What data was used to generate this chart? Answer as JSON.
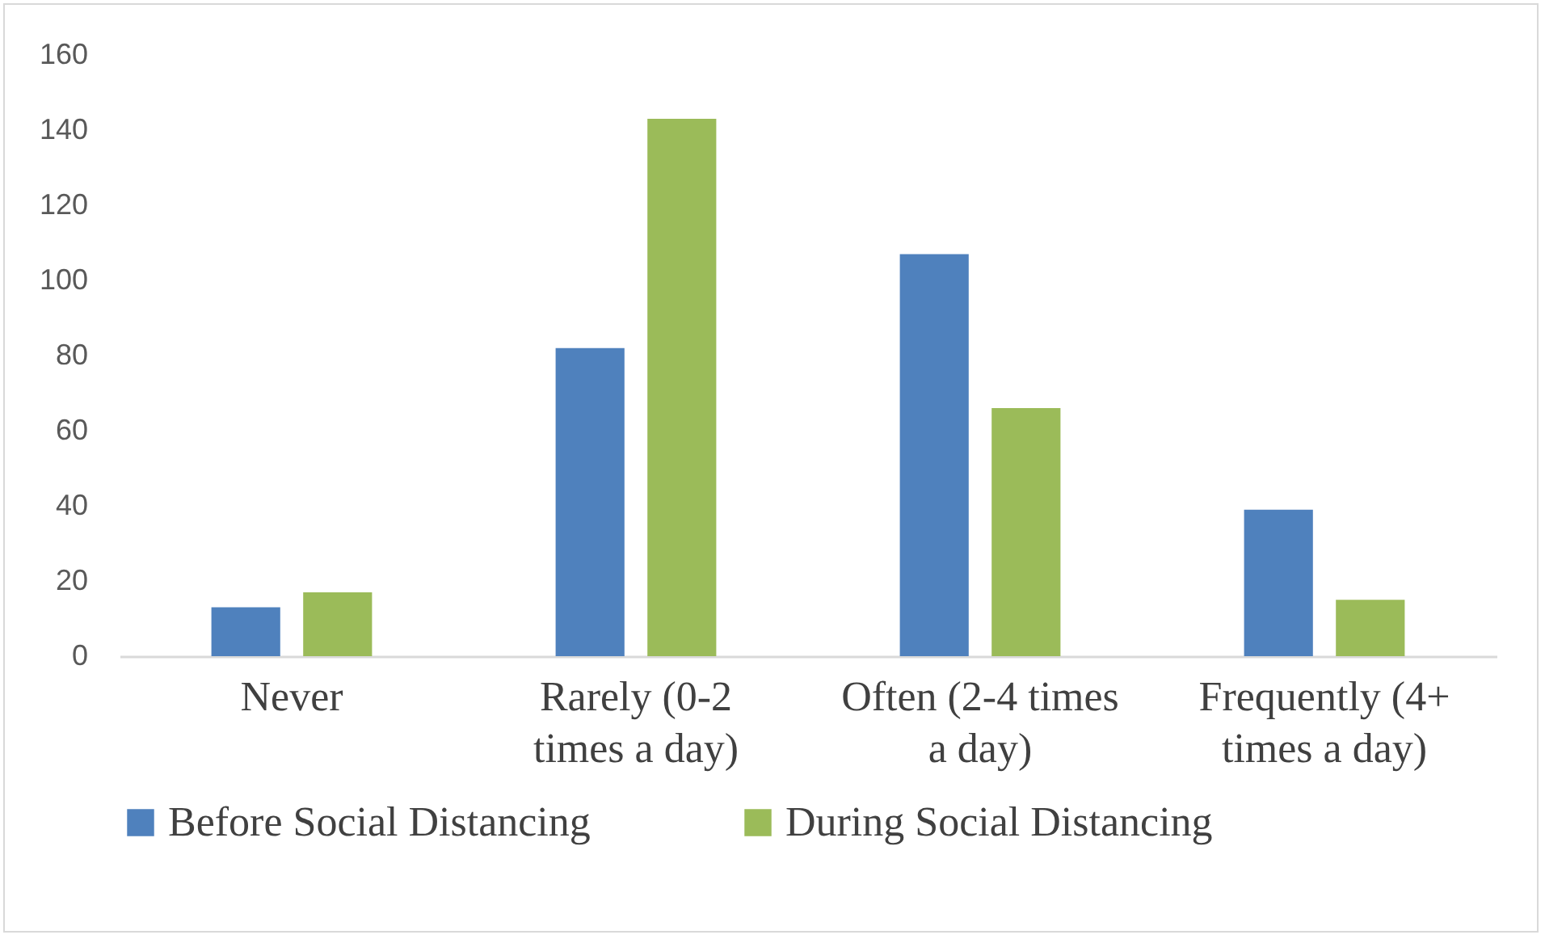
{
  "chart_data": {
    "type": "bar",
    "categories": [
      "Never",
      "Rarely (0-2 times a day)",
      "Often (2-4 times a day)",
      "Frequently (4+ times a day)"
    ],
    "series": [
      {
        "name": "Before Social Distancing",
        "color": "#4f81bd",
        "values": [
          13,
          82,
          107,
          39
        ]
      },
      {
        "name": "During Social Distancing",
        "color": "#9bbb59",
        "values": [
          17,
          143,
          66,
          15
        ]
      }
    ],
    "ylim": [
      0,
      160
    ],
    "yticks": [
      0,
      20,
      40,
      60,
      80,
      100,
      120,
      140,
      160
    ],
    "grid": false,
    "legend": "bottom"
  }
}
